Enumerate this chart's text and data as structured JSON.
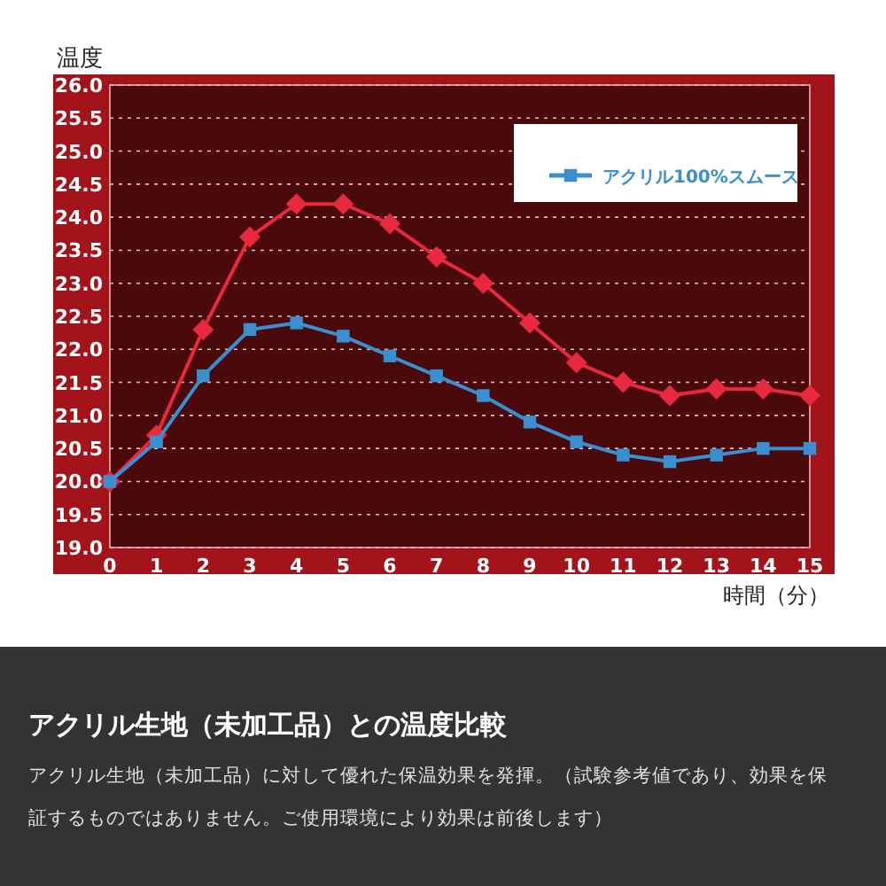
{
  "chart_data": {
    "type": "line",
    "title": "アクリル生地（未加工品）との温度比較",
    "subtitle": "アクリル生地（未加工品）に対して優れた保温効果を発揮。（試験参考値であり、効果を保証するものではありません。ご使用環境により効果は前後します）",
    "xlabel": "時間（分）",
    "ylabel": "温度",
    "x": [
      0,
      1,
      2,
      3,
      4,
      5,
      6,
      7,
      8,
      9,
      10,
      11,
      12,
      13,
      14,
      15
    ],
    "xlim": [
      0,
      15
    ],
    "xticks": [
      0,
      1,
      2,
      3,
      4,
      5,
      6,
      7,
      8,
      9,
      10,
      11,
      12,
      13,
      14,
      15
    ],
    "ylim": [
      19.0,
      26.0
    ],
    "yticks": [
      {
        "value": 19,
        "label": "19.0"
      },
      {
        "value": 19.5,
        "label": "19.5"
      },
      {
        "value": 20,
        "label": "20.0"
      },
      {
        "value": 20.5,
        "label": "20.5"
      },
      {
        "value": 21,
        "label": "21.0"
      },
      {
        "value": 21.5,
        "label": "21.5"
      },
      {
        "value": 22,
        "label": "22.0"
      },
      {
        "value": 22.5,
        "label": "22.5"
      },
      {
        "value": 23,
        "label": "23.0"
      },
      {
        "value": 23.5,
        "label": "23.5"
      },
      {
        "value": 24,
        "label": "24.0"
      },
      {
        "value": 24.5,
        "label": "24.5"
      },
      {
        "value": 25,
        "label": "25.0"
      },
      {
        "value": 25.5,
        "label": "25.5"
      },
      {
        "value": 26,
        "label": "26.0"
      }
    ],
    "grid": "y",
    "legend": "top right",
    "series": [
      {
        "color": "#e8283c",
        "marker": "diamond",
        "values": [
          20.0,
          20.7,
          22.3,
          23.7,
          24.2,
          24.2,
          23.9,
          23.4,
          23.0,
          22.4,
          21.8,
          21.5,
          21.3,
          21.4,
          21.4,
          21.3
        ]
      },
      {
        "name": "アクリル100%スムース",
        "color": "#3a8fd0",
        "marker": "square",
        "values": [
          20.0,
          20.6,
          21.6,
          22.3,
          22.4,
          22.2,
          21.9,
          21.6,
          21.3,
          20.9,
          20.6,
          20.4,
          20.3,
          20.4,
          20.5,
          20.5
        ]
      }
    ]
  }
}
